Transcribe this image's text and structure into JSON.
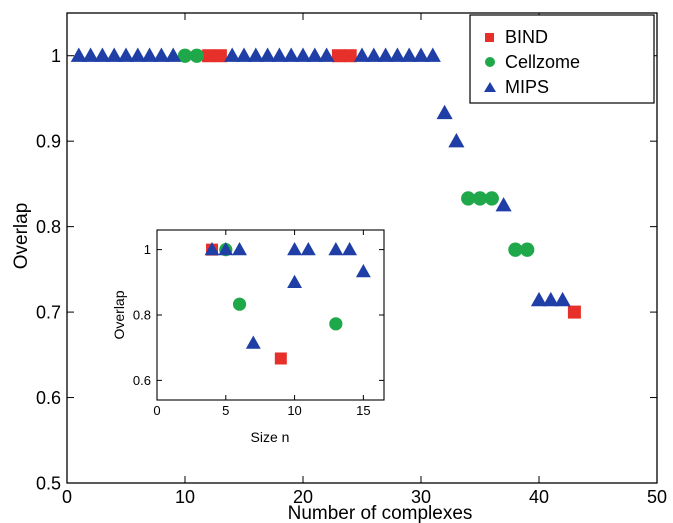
{
  "chart_data": [
    {
      "type": "scatter",
      "title": "",
      "xlabel": "Number of complexes",
      "ylabel": "Overlap",
      "xlim": [
        0,
        50
      ],
      "ylim": [
        0.5,
        1.05
      ],
      "x_ticks": [
        0,
        10,
        20,
        30,
        40,
        50
      ],
      "y_ticks": [
        0.5,
        0.6,
        0.7,
        0.8,
        0.9,
        1
      ],
      "grid": false,
      "legend_position": "top-right",
      "series": [
        {
          "name": "BIND",
          "marker": "square",
          "color": "#e8302a",
          "x": [
            12,
            13,
            23,
            24,
            43
          ],
          "y": [
            1,
            1,
            1,
            1,
            0.7
          ]
        },
        {
          "name": "Cellzome",
          "marker": "circle",
          "color": "#1fa84a",
          "x": [
            10,
            11,
            34,
            35,
            36,
            38,
            39
          ],
          "y": [
            1,
            1,
            0.833,
            0.833,
            0.833,
            0.773,
            0.773
          ]
        },
        {
          "name": "MIPS",
          "marker": "triangle",
          "color": "#1f3fa6",
          "x": [
            1,
            2,
            3,
            4,
            5,
            6,
            7,
            8,
            9,
            14,
            15,
            16,
            17,
            18,
            19,
            20,
            21,
            22,
            25,
            26,
            27,
            28,
            29,
            30,
            31,
            32,
            33,
            37,
            40,
            41,
            42
          ],
          "y": [
            1,
            1,
            1,
            1,
            1,
            1,
            1,
            1,
            1,
            1,
            1,
            1,
            1,
            1,
            1,
            1,
            1,
            1,
            1,
            1,
            1,
            1,
            1,
            1,
            1,
            0.933,
            0.9,
            0.825,
            0.714,
            0.714,
            0.714
          ]
        }
      ]
    },
    {
      "type": "scatter",
      "title": "",
      "xlabel": "Size n",
      "ylabel": "Overlap",
      "xlim": [
        0,
        16.5
      ],
      "ylim": [
        0.54,
        1.06
      ],
      "x_ticks": [
        0,
        5,
        10,
        15
      ],
      "y_ticks": [
        0.6,
        0.8,
        1
      ],
      "grid": false,
      "series": [
        {
          "name": "BIND",
          "marker": "square",
          "color": "#e8302a",
          "x": [
            4,
            9
          ],
          "y": [
            1,
            0.667
          ]
        },
        {
          "name": "Cellzome",
          "marker": "circle",
          "color": "#1fa84a",
          "x": [
            5,
            6,
            13
          ],
          "y": [
            1,
            0.833,
            0.773
          ]
        },
        {
          "name": "MIPS",
          "marker": "triangle",
          "color": "#1f3fa6",
          "x": [
            4,
            5,
            6,
            7,
            10,
            10,
            11,
            13,
            14,
            15
          ],
          "y": [
            1,
            1,
            1,
            0.714,
            1,
            0.9,
            1,
            1,
            1,
            0.933
          ]
        }
      ]
    }
  ]
}
